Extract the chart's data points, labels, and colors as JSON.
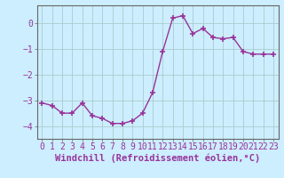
{
  "x": [
    0,
    1,
    2,
    3,
    4,
    5,
    6,
    7,
    8,
    9,
    10,
    11,
    12,
    13,
    14,
    15,
    16,
    17,
    18,
    19,
    20,
    21,
    22,
    23
  ],
  "y": [
    -3.1,
    -3.2,
    -3.5,
    -3.5,
    -3.1,
    -3.6,
    -3.7,
    -3.9,
    -3.9,
    -3.8,
    -3.5,
    -2.7,
    -1.1,
    0.2,
    0.3,
    -0.4,
    -0.2,
    -0.55,
    -0.6,
    -0.55,
    -1.1,
    -1.2,
    -1.2,
    -1.2
  ],
  "line_color": "#993399",
  "marker": "+",
  "marker_size": 4,
  "marker_linewidth": 1.2,
  "background_color": "#cceeff",
  "grid_color": "#aacccc",
  "xlabel": "Windchill (Refroidissement éolien,°C)",
  "xlabel_fontsize": 7.5,
  "tick_fontsize": 7,
  "ylim": [
    -4.5,
    0.7
  ],
  "xlim": [
    -0.5,
    23.5
  ],
  "yticks": [
    0,
    -1,
    -2,
    -3,
    -4
  ],
  "xticks": [
    0,
    1,
    2,
    3,
    4,
    5,
    6,
    7,
    8,
    9,
    10,
    11,
    12,
    13,
    14,
    15,
    16,
    17,
    18,
    19,
    20,
    21,
    22,
    23
  ],
  "spine_color": "#666666",
  "label_color": "#993399"
}
